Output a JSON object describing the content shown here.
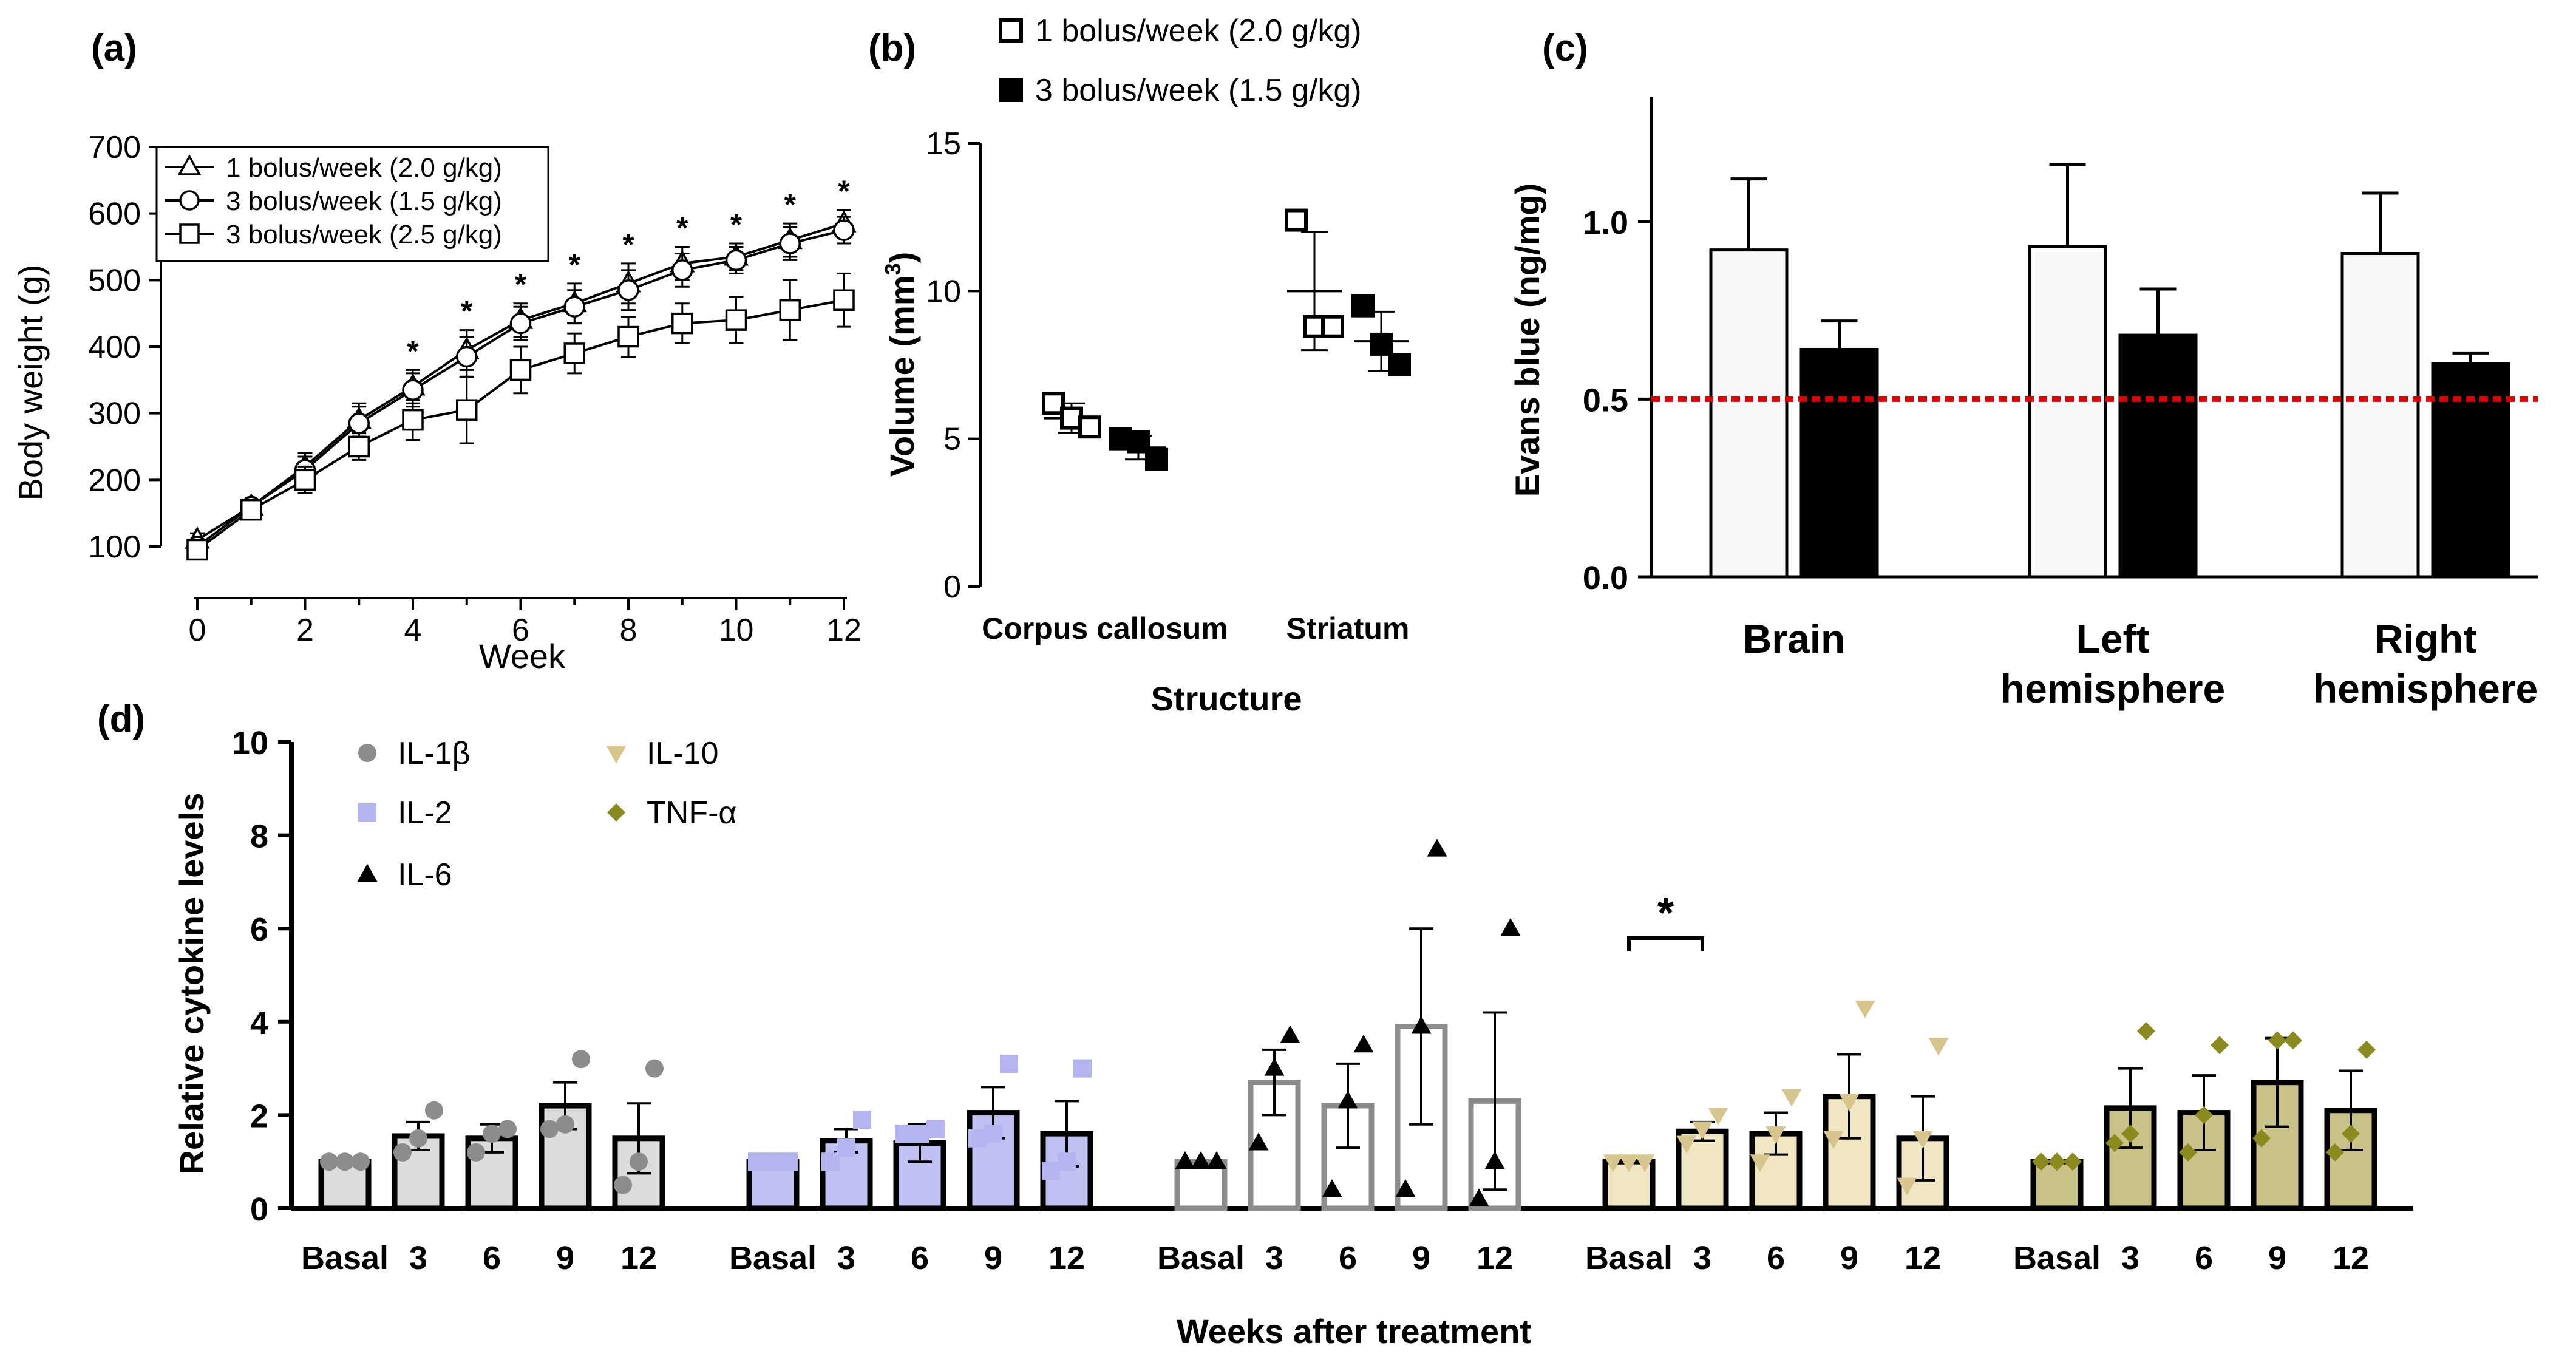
{
  "panels": {
    "a": {
      "label": "(a)",
      "chart_data": {
        "type": "line",
        "xlabel": "Week",
        "ylabel": "Body weight (g)",
        "xlim": [
          0,
          12
        ],
        "ylim": [
          100,
          700
        ],
        "xticks": [
          "0",
          "2",
          "4",
          "6",
          "8",
          "10",
          "12"
        ],
        "yticks": [
          "100",
          "200",
          "300",
          "400",
          "500",
          "600",
          "700"
        ],
        "x": [
          0,
          1,
          2,
          3,
          4,
          5,
          6,
          7,
          8,
          9,
          10,
          11,
          12
        ],
        "legend_position": "top-left",
        "series": [
          {
            "name": "1 bolus/week (2.0 g/kg)",
            "marker": "triangle",
            "values": [
              110,
              160,
              220,
              290,
              340,
              395,
              440,
              465,
              495,
              525,
              535,
              560,
              585
            ],
            "err": [
              10,
              10,
              20,
              25,
              25,
              30,
              25,
              30,
              30,
              25,
              20,
              25,
              20
            ]
          },
          {
            "name": "3 bolus/week (1.5 g/kg)",
            "marker": "circle",
            "values": [
              100,
              160,
              215,
              285,
              335,
              385,
              435,
              460,
              485,
              515,
              530,
              555,
              575
            ],
            "err": [
              10,
              10,
              20,
              25,
              25,
              30,
              25,
              25,
              30,
              25,
              20,
              25,
              20
            ]
          },
          {
            "name": "3 bolus/week (2.5 g/kg)",
            "marker": "square",
            "values": [
              95,
              155,
              200,
              250,
              290,
              305,
              365,
              390,
              415,
              435,
              440,
              455,
              470
            ],
            "err": [
              10,
              10,
              20,
              20,
              30,
              50,
              35,
              30,
              30,
              30,
              35,
              45,
              40
            ]
          }
        ],
        "annotations": [
          {
            "x": 4,
            "text": "*"
          },
          {
            "x": 5,
            "text": "*"
          },
          {
            "x": 6,
            "text": "*"
          },
          {
            "x": 7,
            "text": "*"
          },
          {
            "x": 8,
            "text": "*"
          },
          {
            "x": 9,
            "text": "*"
          },
          {
            "x": 10,
            "text": "*"
          },
          {
            "x": 11,
            "text": "*"
          },
          {
            "x": 12,
            "text": "*"
          }
        ]
      }
    },
    "b": {
      "label": "(b)",
      "chart_data": {
        "type": "scatter",
        "xlabel": "Structure",
        "ylabel_main": "Volume (mm",
        "ylabel_sup": "3",
        "ylabel_end": ")",
        "categories": [
          "Corpus callosum",
          "Striatum"
        ],
        "ylim": [
          0,
          15
        ],
        "yticks": [
          "0",
          "5",
          "10",
          "15"
        ],
        "legend_position": "top",
        "series": [
          {
            "name": "1 bolus/week (2.0 g/kg)",
            "marker": "open-square",
            "points": [
              [
                6.2,
                5.7,
                5.4
              ],
              [
                12.4,
                8.8,
                8.8
              ]
            ],
            "mean": [
              5.7,
              10.0
            ],
            "sd": [
              0.5,
              2.0
            ]
          },
          {
            "name": "3 bolus/week (1.5 g/kg)",
            "marker": "filled-square",
            "points": [
              [
                5.0,
                4.9,
                4.3
              ],
              [
                9.5,
                8.2,
                7.5
              ]
            ],
            "mean": [
              4.7,
              8.3
            ],
            "sd": [
              0.4,
              1.0
            ]
          }
        ]
      }
    },
    "c": {
      "label": "(c)",
      "chart_data": {
        "type": "bar",
        "ylabel": "Evans blue (ng/mg)",
        "categories": [
          [
            "Brain"
          ],
          [
            "Left",
            "hemisphere"
          ],
          [
            "Right",
            "hemisphere"
          ]
        ],
        "ylim": [
          0,
          1.35
        ],
        "yticks": [
          "0.0",
          "0.5",
          "1.0"
        ],
        "series": [
          {
            "fill": "#f8f8f8",
            "values": [
              0.92,
              0.93,
              0.91
            ],
            "err": [
              0.2,
              0.23,
              0.17
            ]
          },
          {
            "fill": "#000000",
            "values": [
              0.64,
              0.68,
              0.6
            ],
            "err": [
              0.08,
              0.13,
              0.03
            ]
          }
        ],
        "reference_line": {
          "y": 0.5,
          "color": "#e00000",
          "style": "dotted"
        }
      }
    },
    "d": {
      "label": "(d)",
      "chart_data": {
        "type": "bar",
        "xlabel": "Weeks after treatment",
        "ylabel": "Relative cytokine levels",
        "ylim": [
          0,
          10
        ],
        "yticks": [
          "0",
          "2",
          "4",
          "6",
          "8",
          "10"
        ],
        "categories": [
          "Basal",
          "3",
          "6",
          "9",
          "12"
        ],
        "legend_position": "top-left",
        "significance": {
          "group": 3,
          "from": 0,
          "to": 1,
          "text": "*"
        },
        "series": [
          {
            "name": "IL-1β",
            "marker": "circle",
            "fill": "#dcdcdc",
            "edge": "#000000",
            "dot": "#8c8c8c",
            "values": [
              1.0,
              1.55,
              1.5,
              2.2,
              1.5
            ],
            "err": [
              0.0,
              0.3,
              0.3,
              0.5,
              0.75
            ],
            "points": [
              [
                1,
                1,
                1
              ],
              [
                1.2,
                1.5,
                2.1
              ],
              [
                1.2,
                1.6,
                1.7
              ],
              [
                1.7,
                1.8,
                3.2
              ],
              [
                0.5,
                1.0,
                3.0
              ]
            ]
          },
          {
            "name": "IL-2",
            "marker": "square",
            "fill": "#c0c0f2",
            "edge": "#000000",
            "dot": "#b4b4f0",
            "values": [
              1.0,
              1.45,
              1.4,
              2.05,
              1.6
            ],
            "err": [
              0.0,
              0.25,
              0.4,
              0.55,
              0.7
            ],
            "points": [
              [
                1,
                1,
                1
              ],
              [
                1.0,
                1.3,
                1.9
              ],
              [
                1.6,
                1.6,
                1.7
              ],
              [
                1.5,
                1.6,
                3.1
              ],
              [
                0.8,
                1.0,
                3.0
              ]
            ]
          },
          {
            "name": "IL-6",
            "marker": "triangle",
            "fill": "#ffffff",
            "edge": "#8c8c8c",
            "dot": "#000000",
            "values": [
              1.0,
              2.7,
              2.2,
              3.9,
              2.3
            ],
            "err": [
              0.0,
              0.7,
              0.9,
              2.1,
              1.9
            ],
            "points": [
              [
                1,
                1,
                1
              ],
              [
                1.4,
                3.0,
                3.7
              ],
              [
                0.4,
                2.3,
                3.5
              ],
              [
                0.4,
                3.9,
                7.7
              ],
              [
                0.2,
                1.0,
                6.0
              ]
            ]
          },
          {
            "name": "IL-10",
            "marker": "down-triangle",
            "fill": "#f0e6c4",
            "edge": "#000000",
            "dot": "#d7c58e",
            "values": [
              1.0,
              1.65,
              1.6,
              2.4,
              1.5
            ],
            "err": [
              0.0,
              0.2,
              0.45,
              0.9,
              0.9
            ],
            "points": [
              [
                1,
                1,
                1
              ],
              [
                1.4,
                1.7,
                2.0
              ],
              [
                1.0,
                1.6,
                2.4
              ],
              [
                1.5,
                2.3,
                4.3
              ],
              [
                0.5,
                1.5,
                3.5
              ]
            ]
          },
          {
            "name": "TNF-α",
            "marker": "diamond",
            "fill": "#c9c389",
            "edge": "#000000",
            "dot": "#8a8a1e",
            "values": [
              1.0,
              2.15,
              2.05,
              2.7,
              2.1
            ],
            "err": [
              0.0,
              0.85,
              0.8,
              0.95,
              0.85
            ],
            "points": [
              [
                1,
                1,
                1
              ],
              [
                1.4,
                1.6,
                3.8
              ],
              [
                1.2,
                2.0,
                3.5
              ],
              [
                1.5,
                3.6,
                3.6
              ],
              [
                1.2,
                1.6,
                3.4
              ]
            ]
          }
        ]
      }
    }
  }
}
